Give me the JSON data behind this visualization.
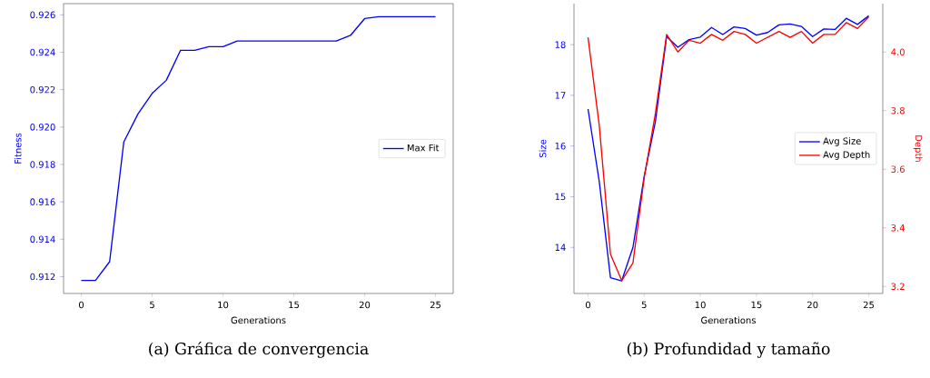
{
  "chart_data": [
    {
      "type": "line",
      "title": "(a) Gráfica de convergencia",
      "xlabel": "Generations",
      "ylabel": "Fitness",
      "x": [
        0,
        1,
        2,
        3,
        4,
        5,
        6,
        7,
        8,
        9,
        10,
        11,
        12,
        13,
        14,
        15,
        16,
        17,
        18,
        19,
        20,
        21,
        22,
        23,
        24,
        25
      ],
      "series": [
        {
          "name": "Max Fit",
          "color": "#0000ff",
          "values": [
            0.9118,
            0.9118,
            0.9128,
            0.9192,
            0.9207,
            0.9218,
            0.9225,
            0.9241,
            0.9241,
            0.9243,
            0.9243,
            0.9246,
            0.9246,
            0.9246,
            0.9246,
            0.9246,
            0.9246,
            0.9246,
            0.9246,
            0.9249,
            0.9258,
            0.9259,
            0.9259,
            0.9259,
            0.9259,
            0.9259
          ]
        }
      ],
      "xlim": [
        -1.25,
        26.25
      ],
      "ylim": [
        0.9111,
        0.9266
      ],
      "xticks": [
        0,
        5,
        10,
        15,
        20,
        25
      ],
      "yticks": [
        0.912,
        0.914,
        0.916,
        0.918,
        {
          "value": 0.92,
          "label": "0.920"
        },
        0.922,
        0.924,
        0.926
      ],
      "legend": "right"
    },
    {
      "type": "line",
      "title": "(b) Profundidad y tamaño",
      "xlabel": "Generations",
      "ylabel": "Size",
      "y2label": "Depth",
      "x": [
        0,
        1,
        2,
        3,
        4,
        5,
        6,
        7,
        8,
        9,
        10,
        11,
        12,
        13,
        14,
        15,
        16,
        17,
        18,
        19,
        20,
        21,
        22,
        23,
        24,
        25
      ],
      "series": [
        {
          "name": "Avg Size",
          "color": "#0000ff",
          "axis": "y",
          "values": [
            16.73,
            15.3,
            13.4,
            13.34,
            14.0,
            15.4,
            16.48,
            18.16,
            17.95,
            18.1,
            18.15,
            18.34,
            18.2,
            18.35,
            18.32,
            18.19,
            18.24,
            18.39,
            18.41,
            18.36,
            18.16,
            18.31,
            18.3,
            18.52,
            18.4,
            18.57
          ]
        },
        {
          "name": "Avg Depth",
          "color": "#ff0000",
          "axis": "y2",
          "values": [
            4.05,
            3.75,
            3.31,
            3.22,
            3.28,
            3.57,
            3.79,
            4.06,
            4.0,
            4.04,
            4.03,
            4.06,
            4.04,
            4.07,
            4.06,
            4.03,
            4.05,
            4.07,
            4.05,
            4.07,
            4.03,
            4.06,
            4.06,
            4.1,
            4.08,
            4.12
          ]
        }
      ],
      "xlim": [
        -1.25,
        26.25
      ],
      "ylim": [
        13.09,
        18.81
      ],
      "y2lim": [
        3.176,
        4.165
      ],
      "xticks": [
        0,
        5,
        10,
        15,
        20,
        25
      ],
      "yticks": [
        14,
        15,
        16,
        17,
        18
      ],
      "y2ticks": [
        {
          "value": 3.2,
          "label": "3.2"
        },
        {
          "value": 3.4,
          "label": "3.4"
        },
        {
          "value": 3.6,
          "label": "3.6"
        },
        {
          "value": 3.8,
          "label": "3.8"
        },
        {
          "value": 4.0,
          "label": "4.0"
        }
      ],
      "legend": "right"
    }
  ]
}
